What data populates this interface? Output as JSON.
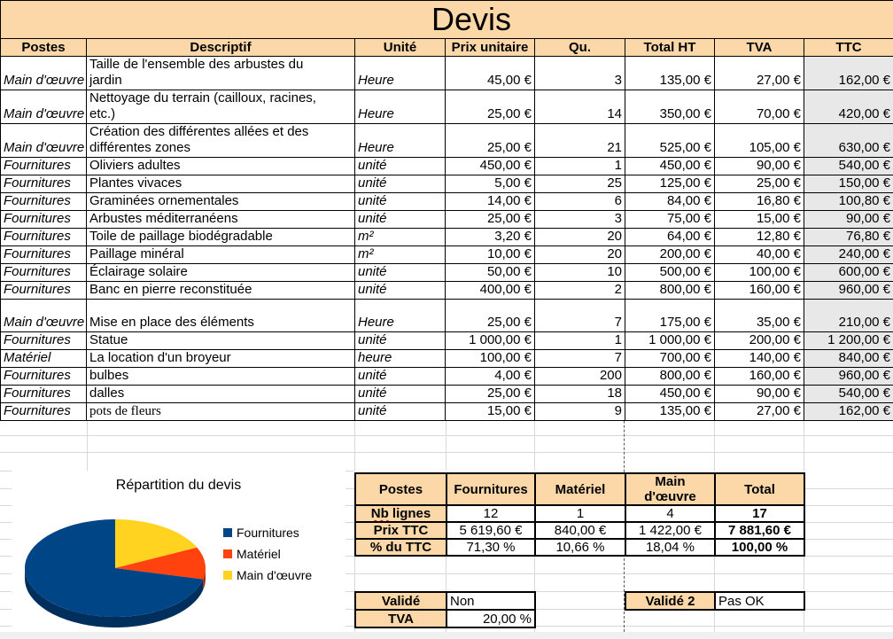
{
  "title": "Devis",
  "colors": {
    "header_bg": "#fcd8a9",
    "ttc_column_bg": "#e8e8e8",
    "pie_blue": "#004586",
    "pie_red": "#ff420e",
    "pie_yellow": "#ffd320"
  },
  "table": {
    "headers": [
      "Postes",
      "Descriptif",
      "Unité",
      "Prix unitaire",
      "Qu.",
      "Total HT",
      "TVA",
      "TTC"
    ],
    "rows": [
      {
        "poste": "Main d'œuvre",
        "desc": "Taille de l'ensemble des arbustes du\njardin",
        "unite": "Heure",
        "pu": "45,00 €",
        "qty": "3",
        "ht": "135,00 €",
        "tva": "27,00 €",
        "ttc": "162,00 €",
        "h": "tall"
      },
      {
        "poste": "Main d'œuvre",
        "desc": "Nettoyage du terrain (cailloux, racines,\netc.)",
        "unite": "Heure",
        "pu": "25,00 €",
        "qty": "14",
        "ht": "350,00 €",
        "tva": "70,00 €",
        "ttc": "420,00 €",
        "h": "tall"
      },
      {
        "poste": "Main d'œuvre",
        "desc": "Création des différentes allées et des\ndifférentes zones",
        "unite": "Heure",
        "pu": "25,00 €",
        "qty": "21",
        "ht": "525,00 €",
        "tva": "105,00 €",
        "ttc": "630,00 €",
        "h": "tall"
      },
      {
        "poste": "Fournitures",
        "desc": "Oliviers adultes",
        "unite": "unité",
        "pu": "450,00 €",
        "qty": "1",
        "ht": "450,00 €",
        "tva": "90,00 €",
        "ttc": "540,00 €"
      },
      {
        "poste": "Fournitures",
        "desc": "Plantes vivaces",
        "unite": "unité",
        "pu": "5,00 €",
        "qty": "25",
        "ht": "125,00 €",
        "tva": "25,00 €",
        "ttc": "150,00 €"
      },
      {
        "poste": "Fournitures",
        "desc": "Graminées ornementales",
        "unite": "unité",
        "pu": "14,00 €",
        "qty": "6",
        "ht": "84,00 €",
        "tva": "16,80 €",
        "ttc": "100,80 €"
      },
      {
        "poste": "Fournitures",
        "desc": "Arbustes méditerranéens",
        "unite": "unité",
        "pu": "25,00 €",
        "qty": "3",
        "ht": "75,00 €",
        "tva": "15,00 €",
        "ttc": "90,00 €"
      },
      {
        "poste": "Fournitures",
        "desc": "Toile de paillage biodégradable",
        "unite": "m²",
        "pu": "3,20 €",
        "qty": "20",
        "ht": "64,00 €",
        "tva": "12,80 €",
        "ttc": "76,80 €"
      },
      {
        "poste": "Fournitures",
        "desc": "Paillage minéral",
        "unite": "m²",
        "pu": "10,00 €",
        "qty": "20",
        "ht": "200,00 €",
        "tva": "40,00 €",
        "ttc": "240,00 €"
      },
      {
        "poste": "Fournitures",
        "desc": "Éclairage solaire",
        "unite": "unité",
        "pu": "50,00 €",
        "qty": "10",
        "ht": "500,00 €",
        "tva": "100,00 €",
        "ttc": "600,00 €"
      },
      {
        "poste": "Fournitures",
        "desc": "Banc en pierre reconstituée",
        "unite": "unité",
        "pu": "400,00 €",
        "qty": "2",
        "ht": "800,00 €",
        "tva": "160,00 €",
        "ttc": "960,00 €"
      },
      {
        "poste": "Main d'œuvre",
        "desc": "Mise en place des éléments",
        "unite": "Heure",
        "pu": "25,00 €",
        "qty": "7",
        "ht": "175,00 €",
        "tva": "35,00 €",
        "ttc": "210,00 €",
        "h": "tall"
      },
      {
        "poste": "Fournitures",
        "desc": "Statue",
        "unite": "unité",
        "pu": "1 000,00 €",
        "qty": "1",
        "ht": "1 000,00 €",
        "tva": "200,00 €",
        "ttc": "1 200,00 €"
      },
      {
        "poste": "Matériel",
        "desc": "La location d'un broyeur",
        "unite": "heure",
        "pu": "100,00 €",
        "qty": "7",
        "ht": "700,00 €",
        "tva": "140,00 €",
        "ttc": "840,00 €"
      },
      {
        "poste": "Fournitures",
        "desc": "bulbes",
        "unite": "unité",
        "pu": "4,00 €",
        "qty": "200",
        "ht": "800,00 €",
        "tva": "160,00 €",
        "ttc": "960,00 €"
      },
      {
        "poste": "Fournitures",
        "desc": "dalles",
        "unite": "unité",
        "pu": "25,00 €",
        "qty": "18",
        "ht": "450,00 €",
        "tva": "90,00 €",
        "ttc": "540,00 €"
      },
      {
        "poste": "Fournitures",
        "desc": "pots de fleurs",
        "unite": "unité",
        "pu": "15,00 €",
        "qty": "9",
        "ht": "135,00 €",
        "tva": "27,00 €",
        "ttc": "162,00 €",
        "serif": true
      }
    ]
  },
  "summary": {
    "header": [
      "Postes",
      "Fournitures",
      "Matériel",
      "Main\nd'œuvre",
      "Total"
    ],
    "nb_label_word1": "Nb",
    "nb_label_word2": " lignes",
    "nb_values": [
      "12",
      "1",
      "4",
      "17"
    ],
    "prix_label": "Prix TTC",
    "prix_values": [
      "5 619,60 €",
      "840,00 €",
      "1 422,00 €",
      "7 881,60 €"
    ],
    "pct_label": "% du TTC",
    "pct_values": [
      "71,30 %",
      "10,66 %",
      "18,04 %",
      "100,00 %"
    ]
  },
  "validation": {
    "valide_label": "Validé",
    "valide_value": "Non",
    "tva_label": "TVA",
    "tva_value": "20,00 %",
    "valide2_label": "Validé 2",
    "valide2_value": "Pas OK"
  },
  "chart_data": {
    "type": "pie",
    "title": "Répartition du devis",
    "labels": [
      "Fournitures",
      "Matériel",
      "Main d'œuvre"
    ],
    "values": [
      71.3,
      10.66,
      18.04
    ],
    "colors": [
      "#004586",
      "#ff420e",
      "#ffd320"
    ],
    "side_colors": [
      "#002f5d",
      "#a62b08",
      "#b29416"
    ],
    "legend_position": "right",
    "style": "3d"
  }
}
